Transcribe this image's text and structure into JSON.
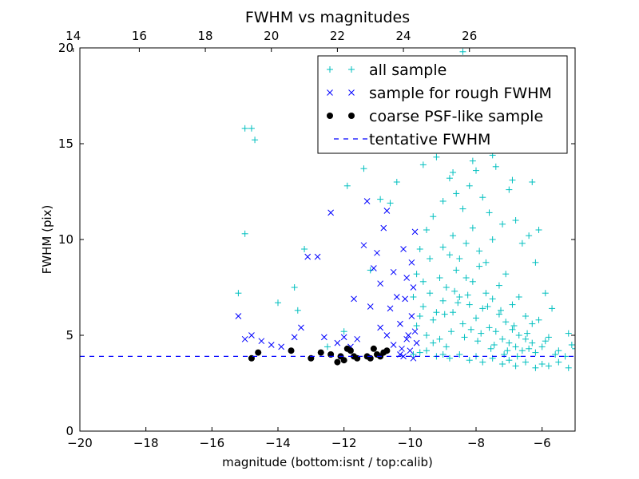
{
  "chart_data": {
    "type": "scatter",
    "title": "FWHM vs magnitudes",
    "xlabel": "magnitude (bottom:isnt / top:calib)",
    "ylabel": "FWHM (pix)",
    "xlim": [
      -20,
      -5
    ],
    "ylim": [
      0,
      20
    ],
    "x_ticks": [
      -20,
      -18,
      -16,
      -14,
      -12,
      -10,
      -8,
      -6
    ],
    "x_tick_labels": [
      "−20",
      "−18",
      "−16",
      "−14",
      "−12",
      "−10",
      "−8",
      "−6"
    ],
    "y_ticks": [
      0,
      5,
      10,
      15,
      20
    ],
    "y_tick_labels": [
      "0",
      "5",
      "10",
      "15",
      "20"
    ],
    "top_axis": {
      "ticks": [
        14,
        16,
        18,
        20,
        22,
        24,
        26
      ],
      "tick_labels": [
        "14",
        "16",
        "18",
        "20",
        "22",
        "24",
        "26"
      ],
      "offset": 34.2
    },
    "legend_position": "top-right",
    "grid": false,
    "tentative_fwhm": 3.9,
    "series": [
      {
        "name": "all sample",
        "marker": "plus",
        "color": "#00bfbf",
        "points": [
          [
            -15.2,
            7.2
          ],
          [
            -15.0,
            15.8
          ],
          [
            -14.8,
            15.8
          ],
          [
            -14.7,
            15.2
          ],
          [
            -15.0,
            10.3
          ],
          [
            -14.0,
            6.7
          ],
          [
            -13.5,
            7.5
          ],
          [
            -13.4,
            6.3
          ],
          [
            -13.2,
            9.5
          ],
          [
            -12.5,
            4.4
          ],
          [
            -12.0,
            5.2
          ],
          [
            -11.9,
            12.8
          ],
          [
            -11.4,
            13.7
          ],
          [
            -11.2,
            8.4
          ],
          [
            -10.9,
            12.1
          ],
          [
            -10.6,
            11.9
          ],
          [
            -10.4,
            13.0
          ],
          [
            -9.9,
            4.0
          ],
          [
            -9.7,
            4.1
          ],
          [
            -9.5,
            4.2
          ],
          [
            -9.2,
            3.9
          ],
          [
            -9.0,
            4.0
          ],
          [
            -8.8,
            3.8
          ],
          [
            -8.5,
            4.0
          ],
          [
            -8.2,
            3.7
          ],
          [
            -8.0,
            3.9
          ],
          [
            -7.8,
            3.6
          ],
          [
            -7.5,
            3.8
          ],
          [
            -7.2,
            3.5
          ],
          [
            -7.0,
            3.7
          ],
          [
            -6.8,
            3.4
          ],
          [
            -6.5,
            3.6
          ],
          [
            -6.2,
            3.3
          ],
          [
            -6.0,
            3.5
          ],
          [
            -5.8,
            3.4
          ],
          [
            -5.5,
            3.6
          ],
          [
            -5.2,
            3.3
          ],
          [
            -9.8,
            5.5
          ],
          [
            -9.6,
            6.5
          ],
          [
            -9.4,
            7.2
          ],
          [
            -9.3,
            5.8
          ],
          [
            -9.1,
            8.0
          ],
          [
            -9.0,
            6.8
          ],
          [
            -8.9,
            7.5
          ],
          [
            -8.8,
            9.2
          ],
          [
            -8.7,
            6.2
          ],
          [
            -8.6,
            8.4
          ],
          [
            -8.5,
            7.0
          ],
          [
            -8.4,
            5.6
          ],
          [
            -8.3,
            9.8
          ],
          [
            -8.2,
            6.6
          ],
          [
            -8.1,
            7.8
          ],
          [
            -8.0,
            5.9
          ],
          [
            -7.9,
            8.6
          ],
          [
            -7.8,
            6.4
          ],
          [
            -7.7,
            7.2
          ],
          [
            -7.6,
            5.4
          ],
          [
            -7.5,
            6.9
          ],
          [
            -7.4,
            5.2
          ],
          [
            -7.3,
            6.1
          ],
          [
            -7.2,
            4.8
          ],
          [
            -7.1,
            5.7
          ],
          [
            -7.0,
            4.6
          ],
          [
            -6.9,
            5.3
          ],
          [
            -6.8,
            4.4
          ],
          [
            -6.7,
            5.0
          ],
          [
            -6.6,
            4.2
          ],
          [
            -6.5,
            4.8
          ],
          [
            -6.4,
            4.3
          ],
          [
            -6.3,
            4.6
          ],
          [
            -6.2,
            4.1
          ],
          [
            -6.0,
            4.4
          ],
          [
            -5.8,
            4.9
          ],
          [
            -5.5,
            4.2
          ],
          [
            -5.2,
            5.1
          ],
          [
            -5.1,
            4.5
          ],
          [
            -9.7,
            9.5
          ],
          [
            -9.5,
            10.5
          ],
          [
            -9.3,
            11.2
          ],
          [
            -9.0,
            12.0
          ],
          [
            -8.8,
            13.2
          ],
          [
            -8.6,
            12.4
          ],
          [
            -8.4,
            11.6
          ],
          [
            -8.2,
            12.8
          ],
          [
            -8.0,
            13.6
          ],
          [
            -7.8,
            12.2
          ],
          [
            -7.6,
            11.4
          ],
          [
            -7.4,
            13.8
          ],
          [
            -7.2,
            10.8
          ],
          [
            -7.0,
            12.6
          ],
          [
            -6.8,
            11.0
          ],
          [
            -6.6,
            9.8
          ],
          [
            -6.4,
            10.2
          ],
          [
            -6.2,
            8.8
          ],
          [
            -9.6,
            13.9
          ],
          [
            -9.2,
            14.3
          ],
          [
            -8.7,
            13.5
          ],
          [
            -8.1,
            14.1
          ],
          [
            -7.5,
            14.4
          ],
          [
            -6.9,
            13.1
          ],
          [
            -8.6,
            15.2
          ],
          [
            -8.2,
            16.5
          ],
          [
            -8.0,
            17.2
          ],
          [
            -7.7,
            15.8
          ],
          [
            -7.4,
            16.2
          ],
          [
            -7.0,
            17.5
          ],
          [
            -6.6,
            14.8
          ],
          [
            -6.3,
            13.0
          ],
          [
            -8.4,
            19.8
          ],
          [
            -6.1,
            10.5
          ],
          [
            -5.9,
            7.2
          ],
          [
            -5.7,
            6.4
          ],
          [
            -9.9,
            7.0
          ],
          [
            -9.8,
            8.2
          ],
          [
            -9.7,
            6.0
          ],
          [
            -9.6,
            7.8
          ],
          [
            -9.5,
            5.0
          ],
          [
            -9.4,
            9.0
          ],
          [
            -9.3,
            4.6
          ],
          [
            -9.2,
            6.2
          ],
          [
            -9.1,
            4.8
          ],
          [
            -9.0,
            9.6
          ],
          [
            -8.9,
            4.4
          ],
          [
            -8.7,
            10.2
          ],
          [
            -8.5,
            9.0
          ],
          [
            -8.3,
            8.0
          ],
          [
            -8.1,
            10.6
          ],
          [
            -7.9,
            9.4
          ],
          [
            -7.7,
            8.8
          ],
          [
            -7.5,
            10.0
          ],
          [
            -7.3,
            7.6
          ],
          [
            -7.1,
            8.2
          ],
          [
            -6.9,
            6.6
          ],
          [
            -6.7,
            7.0
          ],
          [
            -6.5,
            6.0
          ],
          [
            -6.3,
            5.6
          ],
          [
            -6.1,
            5.8
          ],
          [
            -5.9,
            4.7
          ],
          [
            -5.6,
            4.0
          ],
          [
            -5.3,
            3.9
          ],
          [
            -5.0,
            4.3
          ],
          [
            -8.95,
            6.1
          ],
          [
            -8.55,
            6.7
          ],
          [
            -8.15,
            5.3
          ],
          [
            -7.85,
            5.1
          ],
          [
            -7.45,
            4.5
          ],
          [
            -7.05,
            4.2
          ],
          [
            -8.75,
            5.2
          ],
          [
            -8.35,
            4.9
          ],
          [
            -7.95,
            4.7
          ],
          [
            -7.55,
            4.3
          ],
          [
            -7.15,
            4.0
          ],
          [
            -6.75,
            3.9
          ],
          [
            -8.65,
            7.3
          ],
          [
            -8.25,
            7.1
          ],
          [
            -7.65,
            6.5
          ],
          [
            -7.25,
            6.3
          ],
          [
            -6.85,
            5.5
          ],
          [
            -6.45,
            5.1
          ]
        ]
      },
      {
        "name": "sample for rough FWHM",
        "marker": "x",
        "color": "#0000ff",
        "points": [
          [
            -15.2,
            6.0
          ],
          [
            -15.0,
            4.8
          ],
          [
            -14.8,
            5.0
          ],
          [
            -14.5,
            4.7
          ],
          [
            -14.2,
            4.5
          ],
          [
            -13.9,
            4.4
          ],
          [
            -13.5,
            4.9
          ],
          [
            -13.3,
            5.4
          ],
          [
            -13.1,
            9.1
          ],
          [
            -12.8,
            9.1
          ],
          [
            -12.6,
            4.9
          ],
          [
            -12.4,
            11.4
          ],
          [
            -12.2,
            4.6
          ],
          [
            -12.0,
            4.9
          ],
          [
            -11.8,
            4.4
          ],
          [
            -11.6,
            4.8
          ],
          [
            -11.4,
            9.7
          ],
          [
            -11.3,
            12.0
          ],
          [
            -11.1,
            8.5
          ],
          [
            -11.0,
            9.3
          ],
          [
            -10.9,
            7.7
          ],
          [
            -10.8,
            10.6
          ],
          [
            -10.7,
            11.5
          ],
          [
            -10.6,
            6.4
          ],
          [
            -10.5,
            8.3
          ],
          [
            -10.4,
            7.0
          ],
          [
            -10.3,
            5.6
          ],
          [
            -10.25,
            4.3
          ],
          [
            -10.2,
            9.5
          ],
          [
            -10.15,
            6.9
          ],
          [
            -10.1,
            8.0
          ],
          [
            -10.05,
            5.0
          ],
          [
            -10.0,
            4.2
          ],
          [
            -9.95,
            6.0
          ],
          [
            -9.9,
            7.5
          ],
          [
            -9.85,
            5.2
          ],
          [
            -9.8,
            4.6
          ],
          [
            -11.7,
            6.9
          ],
          [
            -11.2,
            6.5
          ],
          [
            -10.9,
            5.4
          ],
          [
            -10.7,
            5.0
          ],
          [
            -10.5,
            4.5
          ],
          [
            -10.3,
            4.0
          ],
          [
            -10.2,
            3.9
          ],
          [
            -10.1,
            4.8
          ],
          [
            -9.95,
            8.8
          ],
          [
            -9.9,
            3.8
          ],
          [
            -9.85,
            10.4
          ]
        ]
      },
      {
        "name": "coarse PSF-like sample",
        "marker": "dot",
        "color": "#000000",
        "points": [
          [
            -14.8,
            3.8
          ],
          [
            -14.6,
            4.1
          ],
          [
            -13.6,
            4.2
          ],
          [
            -13.0,
            3.8
          ],
          [
            -12.7,
            4.1
          ],
          [
            -12.4,
            4.0
          ],
          [
            -12.2,
            3.6
          ],
          [
            -12.1,
            3.9
          ],
          [
            -12.0,
            3.7
          ],
          [
            -11.9,
            4.3
          ],
          [
            -11.8,
            4.2
          ],
          [
            -11.7,
            3.9
          ],
          [
            -11.6,
            3.8
          ],
          [
            -11.3,
            3.9
          ],
          [
            -11.2,
            3.8
          ],
          [
            -11.1,
            4.3
          ],
          [
            -11.0,
            4.0
          ],
          [
            -10.9,
            3.9
          ],
          [
            -10.8,
            4.1
          ],
          [
            -10.7,
            4.2
          ]
        ]
      },
      {
        "name": "tentative FWHM",
        "marker": "dashed-line",
        "color": "#0000ff"
      }
    ]
  }
}
